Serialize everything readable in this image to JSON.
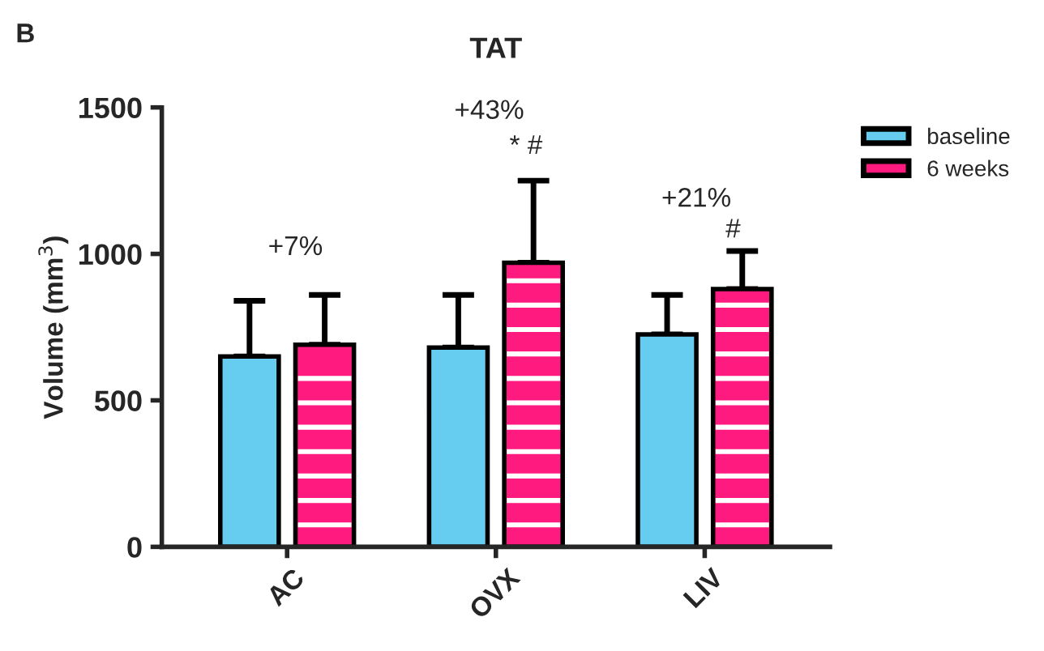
{
  "chart_data": {
    "type": "bar",
    "title": "TAT",
    "ylabel": "Volume (mm$^{3}$)",
    "categories": [
      "AC",
      "OVX",
      "LIV"
    ],
    "series": [
      {
        "name": "baseline",
        "color": "#66ccf0",
        "values": [
          650,
          680,
          725
        ],
        "errors": [
          [
            650,
            840
          ],
          [
            680,
            860
          ],
          [
            725,
            860
          ]
        ]
      },
      {
        "name": "6 weeks",
        "color": "#ff1a80",
        "values": [
          690,
          970,
          880
        ],
        "errors": [
          [
            690,
            860
          ],
          [
            970,
            1250
          ],
          [
            880,
            1010
          ]
        ]
      }
    ],
    "ylim": [
      0,
      1500
    ],
    "yticks": [
      0,
      500,
      1000,
      1500
    ],
    "grid": false,
    "legend": "top right",
    "annotations": [
      "B",
      "+7%",
      "+43%",
      "* #",
      "+21%",
      "#"
    ]
  }
}
